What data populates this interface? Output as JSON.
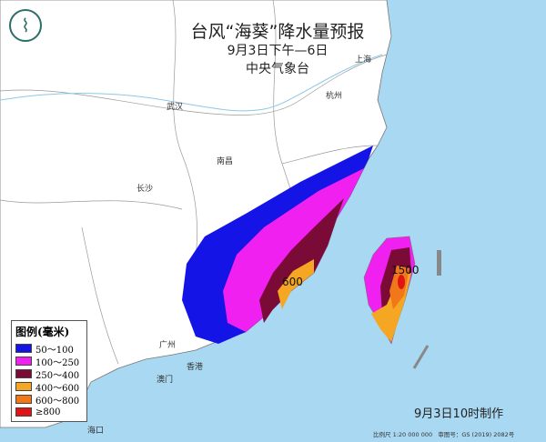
{
  "header": {
    "title": "台风“海葵”降水量预报",
    "period": "9月3日下午—6日",
    "issuer": "中央气象台"
  },
  "cities": [
    "上海",
    "杭州",
    "武汉",
    "南昌",
    "长沙",
    "广州",
    "香港",
    "澳门",
    "海口"
  ],
  "max_values": {
    "fujian": "600",
    "taiwan": "1500"
  },
  "legend": {
    "title": "图例(毫米)",
    "items": [
      {
        "label": "50～100",
        "color": "#1414e6"
      },
      {
        "label": "100～250",
        "color": "#f020f0"
      },
      {
        "label": "250～400",
        "color": "#7a0a36"
      },
      {
        "label": "400～600",
        "color": "#f5a623"
      },
      {
        "label": "600～800",
        "color": "#f07818"
      },
      {
        "label": "≥800",
        "color": "#e01414"
      }
    ]
  },
  "footer": {
    "made": "9月3日10时制作",
    "scale": "比例尺 1:20 000 000",
    "approval": "审图号：GS (2019) 2082号"
  },
  "colors": {
    "sea": "#a9d8f2",
    "land": "#ffffff"
  }
}
